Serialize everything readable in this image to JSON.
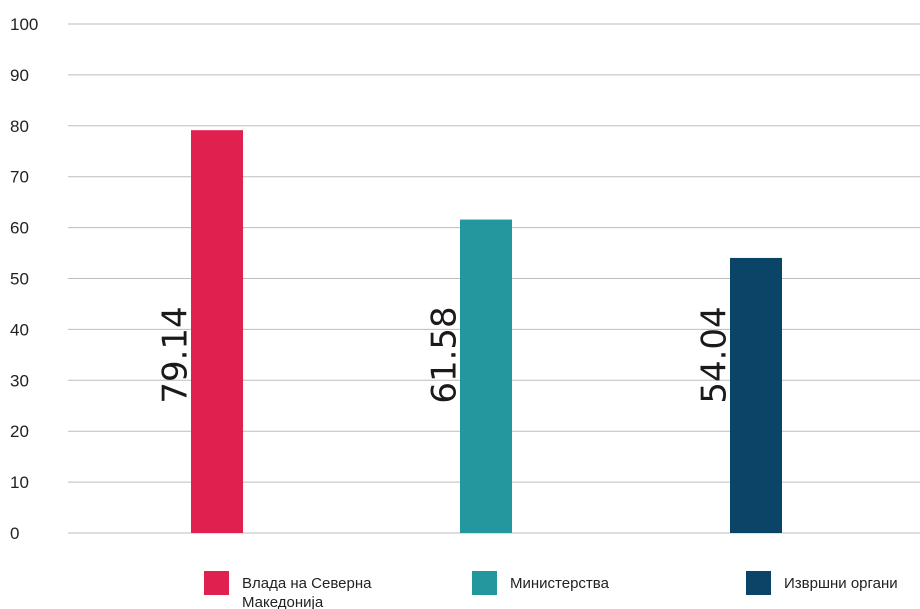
{
  "chart_data": {
    "type": "bar",
    "categories": [
      "Влада на Северна Македонија",
      "Министерства",
      "Извршни органи"
    ],
    "values": [
      79.14,
      61.58,
      54.04
    ],
    "value_labels": [
      "79.14",
      "61.58",
      "54.04"
    ],
    "colors": [
      "#e0204f",
      "#23979e",
      "#0a4466"
    ],
    "legend": [
      {
        "lines": [
          "Влада на Северна",
          "Македонија"
        ]
      },
      {
        "lines": [
          "Министерства"
        ]
      },
      {
        "lines": [
          "Извршни органи"
        ]
      }
    ],
    "legend_position": "bottom",
    "ylim": [
      0,
      100
    ],
    "yticks": [
      "0",
      "10",
      "20",
      "30",
      "40",
      "50",
      "60",
      "70",
      "80",
      "90",
      "100"
    ],
    "grid": true,
    "title": "",
    "xlabel": "",
    "ylabel": ""
  }
}
